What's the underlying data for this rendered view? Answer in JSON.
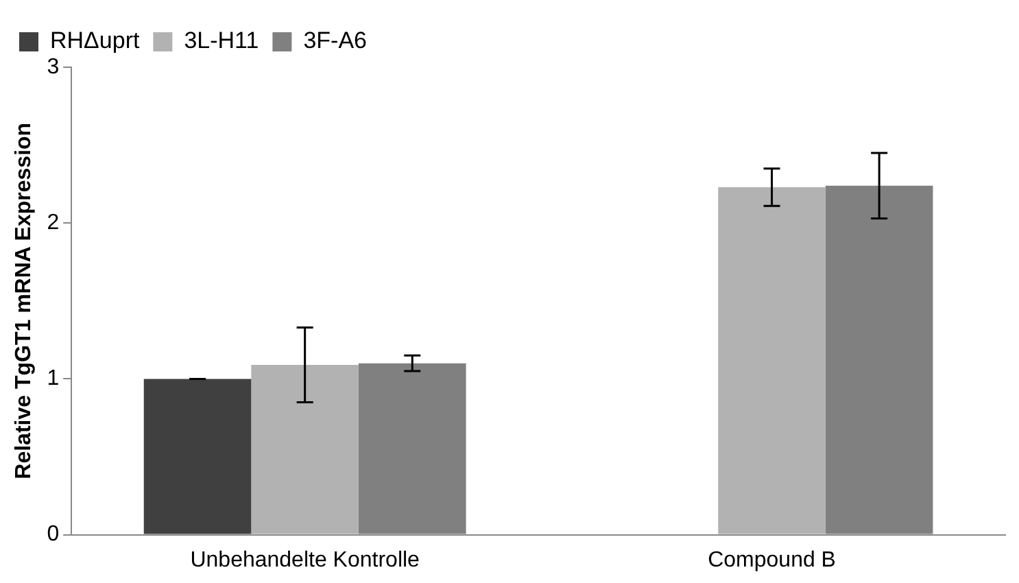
{
  "chart_data": {
    "type": "bar",
    "ylabel": "Relative TgGT1 mRNA Expression",
    "categories": [
      "Unbehandelte Kontrolle",
      "Compound B"
    ],
    "series": [
      {
        "name": "RHΔuprt",
        "color": "#404040",
        "values": [
          1.0,
          null
        ],
        "errors": [
          0,
          null
        ]
      },
      {
        "name": "3L-H11",
        "color": "#b2b2b2",
        "values": [
          1.09,
          2.23
        ],
        "errors": [
          0.24,
          0.12
        ]
      },
      {
        "name": "3F-A6",
        "color": "#808080",
        "values": [
          1.1,
          2.24
        ],
        "errors": [
          0.05,
          0.21
        ]
      }
    ],
    "ylim": [
      0,
      3
    ],
    "yticks": [
      0,
      1,
      2,
      3
    ],
    "grid": false,
    "legend": "top left"
  }
}
